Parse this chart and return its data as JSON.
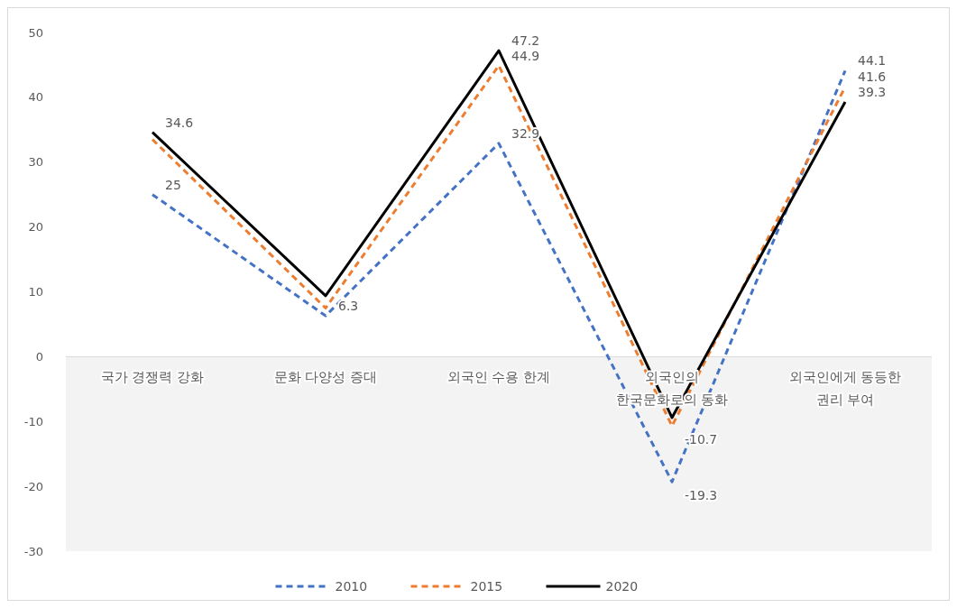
{
  "chart_data": {
    "type": "line",
    "categories": [
      "국가 경쟁력 강화",
      "문화 다양성 증대",
      "외국인 수용 한계",
      "외국인의\n한국문화로의 동화",
      "외국인에게 동등한\n권리 부여"
    ],
    "series": [
      {
        "name": "2010",
        "color": "#4472c4",
        "line_style": "dashed",
        "values": [
          25,
          6.3,
          32.9,
          -19.3,
          44.1
        ],
        "value_labels": [
          "25",
          "6.3",
          "32.9",
          "-19.3",
          "44.1"
        ]
      },
      {
        "name": "2015",
        "color": "#ed7d31",
        "line_style": "dashed",
        "values": [
          33.5,
          7.5,
          44.9,
          -10.7,
          41.6
        ],
        "value_labels": [
          null,
          null,
          "44.9",
          "-10.7",
          "41.6"
        ]
      },
      {
        "name": "2020",
        "color": "#000000",
        "line_style": "solid",
        "values": [
          34.6,
          9.4,
          47.2,
          -9.4,
          39.3
        ],
        "value_labels": [
          "34.6",
          null,
          "47.2",
          null,
          "39.3"
        ]
      }
    ],
    "ylim": [
      -30,
      50
    ],
    "yticks": [
      -30,
      -20,
      -10,
      0,
      10,
      20,
      30,
      40,
      50
    ],
    "grid": false,
    "legend": "bottom",
    "marker": "none",
    "bands": [
      {
        "axis": "y",
        "from": -30,
        "to": 0,
        "color": "#f3f3f3"
      }
    ]
  }
}
